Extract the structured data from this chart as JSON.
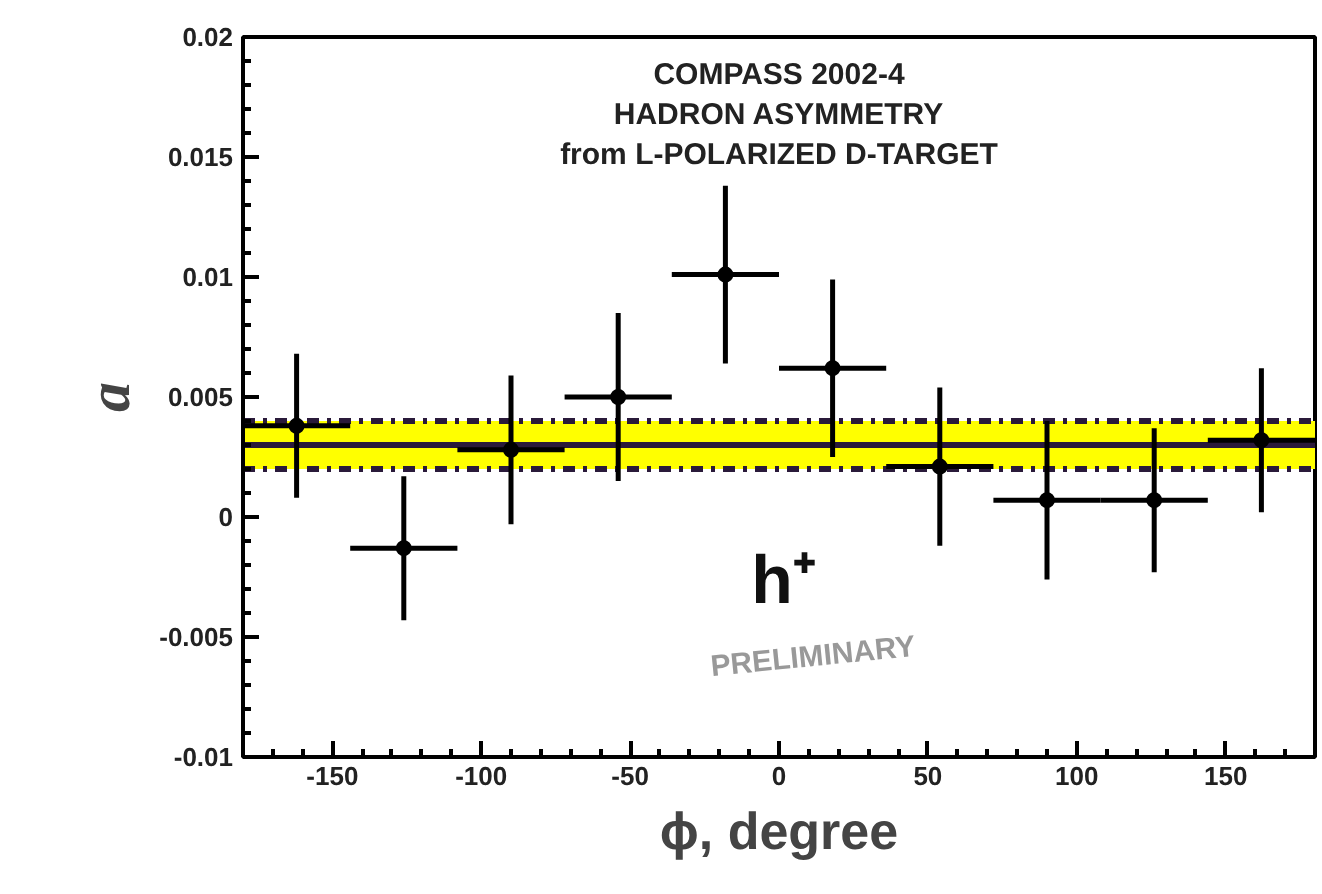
{
  "chart_data": {
    "type": "scatter",
    "title": "COMPASS 2002-4\nHADRON ASYMMETRY\nfrom L-POLARIZED D-TARGET",
    "xlabel": "ϕ, degree",
    "ylabel": "a",
    "x": [
      -162,
      -126,
      -90,
      -54,
      -18,
      18,
      54,
      90,
      126,
      162
    ],
    "values": [
      0.0038,
      -0.0013,
      0.0028,
      0.005,
      0.0101,
      0.0062,
      0.0021,
      0.0007,
      0.0007,
      0.0032
    ],
    "color": "#000000",
    "errors": [
      0.003,
      0.003,
      0.0031,
      0.0035,
      0.0037,
      0.0037,
      0.0033,
      0.0033,
      0.003,
      0.003
    ],
    "xerrors": [
      18,
      18,
      18,
      18,
      18,
      18,
      18,
      18,
      18,
      18
    ],
    "marker": "circle",
    "bands": [
      {
        "axis": "y",
        "from": 0.002,
        "to": 0.004,
        "color": "#ffff00"
      }
    ],
    "ref_lines": [
      {
        "axis": "y",
        "value": 0.003,
        "color": "#2a1a3a",
        "line_style": "solid"
      },
      {
        "axis": "y",
        "value": 0.004,
        "color": "#2a1a3a",
        "line_style": "dashdot"
      },
      {
        "axis": "y",
        "value": 0.002,
        "color": "#2a1a3a",
        "line_style": "dashdot"
      }
    ],
    "xlim": [
      -180,
      180
    ],
    "ylim": [
      -0.01,
      0.02
    ],
    "xticks": [
      -150,
      -100,
      -50,
      0,
      50,
      100,
      150
    ],
    "yticks": [
      -0.01,
      -0.005,
      0,
      0.005,
      0.01,
      0.015,
      0.02
    ],
    "annotations": [
      "h⁺",
      "PRELIMINARY"
    ],
    "grid": false
  }
}
